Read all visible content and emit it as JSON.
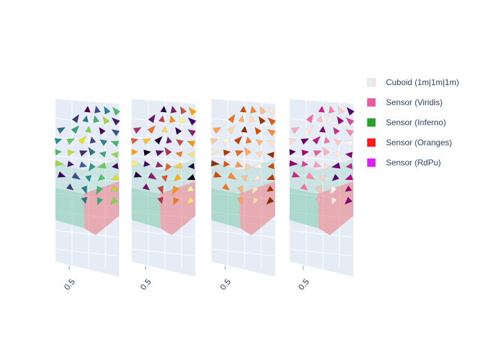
{
  "chart_data": {
    "type": "3d-vector-field",
    "subplots": [
      {
        "sensor": "Sensor (Viridis)",
        "colorscale": "Viridis",
        "colors": [
          "#440154",
          "#3b528b",
          "#21918c",
          "#5ec962",
          "#fde725"
        ],
        "tick_label": "0.5"
      },
      {
        "sensor": "Sensor (Inferno)",
        "colorscale": "Inferno",
        "colors": [
          "#000004",
          "#420a68",
          "#932667",
          "#dd513a",
          "#fca50a",
          "#fcffa4"
        ],
        "tick_label": "0.5"
      },
      {
        "sensor": "Sensor (Oranges)",
        "colorscale": "Oranges",
        "colors": [
          "#7f2704",
          "#d94801",
          "#fd8d3c",
          "#fdd0a2",
          "#fff5eb"
        ],
        "tick_label": "0.5"
      },
      {
        "sensor": "Sensor (RdPu)",
        "colorscale": "RdPu",
        "colors": [
          "#49006a",
          "#ae017e",
          "#f768a1",
          "#fcc5c0",
          "#fff7f3"
        ],
        "tick_label": "0.5"
      }
    ],
    "cuboid": {
      "name": "Cuboid (1m|1m|1m)",
      "colors": [
        "#7fc8a9",
        "#e8787c"
      ]
    }
  },
  "legend": {
    "items": [
      {
        "label": "Cuboid (1m|1m|1m)",
        "color": "#e6f2ec"
      },
      {
        "label": "Sensor (Viridis)",
        "color": "#e65ea0"
      },
      {
        "label": "Sensor (Inferno)",
        "color": "#2ca02c"
      },
      {
        "label": "Sensor (Oranges)",
        "color": "#ff1a1a"
      },
      {
        "label": "Sensor (RdPu)",
        "color": "#e020f0"
      }
    ]
  }
}
